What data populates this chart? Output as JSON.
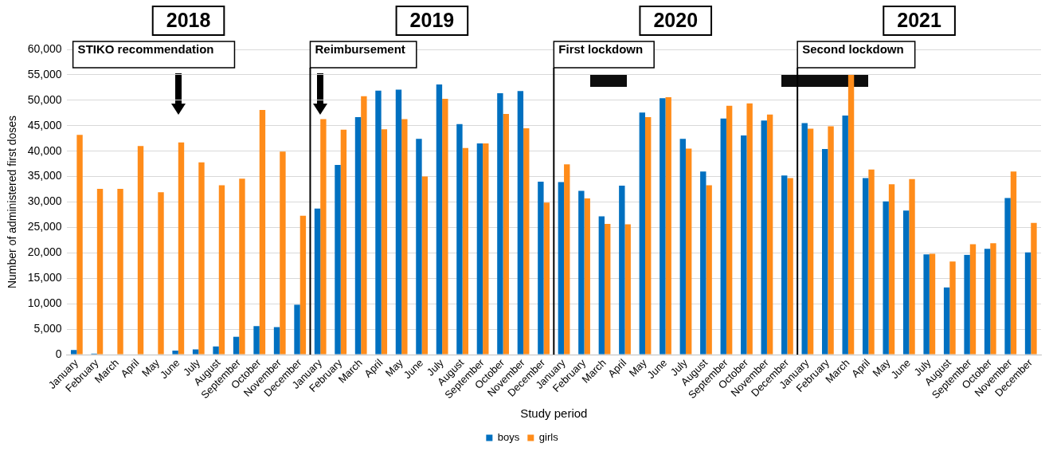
{
  "chart_data": {
    "type": "bar",
    "xlabel": "Study period",
    "ylabel": "Number of administered first doses",
    "categories": [
      "January",
      "February",
      "March",
      "April",
      "May",
      "June",
      "July",
      "August",
      "September",
      "October",
      "November",
      "December",
      "January",
      "February",
      "March",
      "April",
      "May",
      "June",
      "July",
      "August",
      "September",
      "October",
      "November",
      "December",
      "January",
      "February",
      "March",
      "April",
      "May",
      "June",
      "July",
      "August",
      "September",
      "October",
      "November",
      "December",
      "January",
      "February",
      "March",
      "April",
      "May",
      "June",
      "July",
      "August",
      "September",
      "October",
      "November",
      "December"
    ],
    "series": [
      {
        "name": "boys",
        "color": "#0070c0",
        "values": [
          900,
          200,
          0,
          0,
          0,
          800,
          1000,
          1600,
          3500,
          5600,
          5400,
          9800,
          28700,
          37300,
          46700,
          51900,
          52100,
          42400,
          53100,
          45300,
          41500,
          51400,
          51800,
          34000,
          33900,
          32200,
          27200,
          33200,
          47600,
          50400,
          42400,
          36000,
          46400,
          43100,
          46000,
          35200,
          45500,
          40400,
          47000,
          34700,
          30100,
          28300,
          19700,
          13200,
          19600,
          20800,
          30800,
          20100
        ]
      },
      {
        "name": "girls",
        "color": "#ff8c1a",
        "values": [
          43200,
          32600,
          32600,
          41000,
          31900,
          41700,
          37800,
          33300,
          34600,
          48100,
          39900,
          27300,
          46300,
          44200,
          50800,
          44300,
          46300,
          35000,
          50300,
          40600,
          41500,
          47300,
          44500,
          29900,
          37400,
          30700,
          25700,
          25600,
          46700,
          50600,
          40500,
          33300,
          48900,
          49400,
          47200,
          34700,
          44400,
          44900,
          55000,
          36400,
          33500,
          34500,
          19800,
          18300,
          21700,
          21900,
          36000,
          25900
        ]
      }
    ],
    "ylim": [
      0,
      60000
    ],
    "yticks": [
      0,
      {
        "value": 5000,
        "label": "5,000"
      },
      {
        "value": 10000,
        "label": "10,000"
      },
      {
        "value": 15000,
        "label": "15,000"
      },
      {
        "value": 20000,
        "label": "20,000"
      },
      {
        "value": 25000,
        "label": "25,000"
      },
      {
        "value": 30000,
        "label": "30,000"
      },
      {
        "value": 35000,
        "label": "35,000"
      },
      {
        "value": 40000,
        "label": "40,000"
      },
      {
        "value": 45000,
        "label": "45,000"
      },
      {
        "value": 50000,
        "label": "50,000"
      },
      {
        "value": 55000,
        "label": "55,000"
      },
      {
        "value": 60000,
        "label": "60,000"
      }
    ],
    "grid": "y",
    "legend": "bottom",
    "annotations": [
      "2018",
      "2019",
      "2020",
      "2021",
      "STIKO recommendation",
      "Reimbursement",
      "First lockdown",
      "Second lockdown"
    ]
  }
}
